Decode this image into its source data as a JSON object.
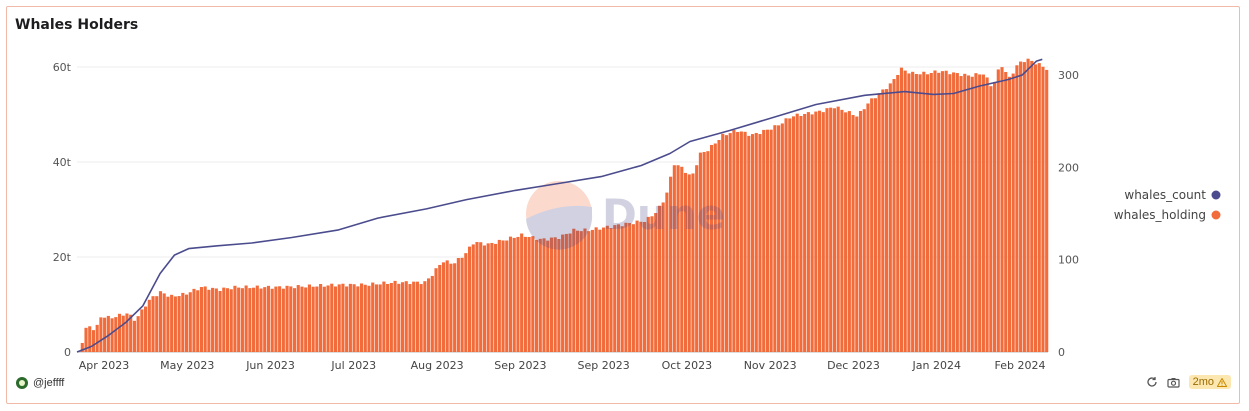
{
  "title": "Whales Holders",
  "watermark": "Dune",
  "author": "@jeffff",
  "age_badge": "2mo",
  "icons": {
    "author": "avatar-icon",
    "share": "refresh-icon",
    "snapshot": "camera-icon",
    "warning": "warning-icon"
  },
  "colors": {
    "bars": "#f26b3a",
    "line": "#4b4c8d",
    "grid": "#ececec",
    "axis_text": "#555555"
  },
  "chart_data": {
    "type": "bar+line",
    "title": "Whales Holders",
    "x_tick_labels": [
      "Apr 2023",
      "May 2023",
      "Jun 2023",
      "Jul 2023",
      "Aug 2023",
      "Sep 2023",
      "Sep 2023",
      "Oct 2023",
      "Nov 2023",
      "Dec 2023",
      "Jan 2024",
      "Feb 2024"
    ],
    "x_range": [
      "2023-04-01",
      "2024-03-05"
    ],
    "y_left": {
      "ticks": [
        "0",
        "20t",
        "40t",
        "60t"
      ],
      "range": [
        0,
        60
      ],
      "unit": "t"
    },
    "y_right": {
      "ticks": [
        "0",
        "100",
        "200",
        "300"
      ],
      "range": [
        0,
        300
      ]
    },
    "legend": {
      "position": "right",
      "items": [
        {
          "name": "whales_count",
          "color": "#4b4c8d"
        },
        {
          "name": "whales_holding",
          "color": "#f26b3a"
        }
      ]
    },
    "series": [
      {
        "name": "whales_holding",
        "type": "bar",
        "axis": "left",
        "points": [
          [
            "2023-04-01",
            0
          ],
          [
            "2023-04-04",
            6
          ],
          [
            "2023-04-07",
            5
          ],
          [
            "2023-04-09",
            8
          ],
          [
            "2023-04-12",
            7.5
          ],
          [
            "2023-04-15",
            8
          ],
          [
            "2023-04-18",
            8.5
          ],
          [
            "2023-04-21",
            7
          ],
          [
            "2023-04-24",
            10
          ],
          [
            "2023-04-27",
            12
          ],
          [
            "2023-04-30",
            13
          ],
          [
            "2023-05-03",
            12
          ],
          [
            "2023-05-08",
            12.5
          ],
          [
            "2023-05-14",
            14
          ],
          [
            "2023-05-20",
            13.5
          ],
          [
            "2023-05-26",
            14
          ],
          [
            "2023-06-01",
            14
          ],
          [
            "2023-06-10",
            14
          ],
          [
            "2023-06-20",
            14.2
          ],
          [
            "2023-07-01",
            14.5
          ],
          [
            "2023-07-10",
            14.5
          ],
          [
            "2023-07-20",
            15
          ],
          [
            "2023-07-31",
            15
          ],
          [
            "2023-08-03",
            17
          ],
          [
            "2023-08-06",
            19.5
          ],
          [
            "2023-08-10",
            19
          ],
          [
            "2023-08-14",
            21
          ],
          [
            "2023-08-17",
            23.5
          ],
          [
            "2023-08-22",
            23
          ],
          [
            "2023-08-28",
            24
          ],
          [
            "2023-09-03",
            25
          ],
          [
            "2023-09-06",
            24.5
          ],
          [
            "2023-09-10",
            24
          ],
          [
            "2023-09-16",
            24.5
          ],
          [
            "2023-09-21",
            26
          ],
          [
            "2023-09-26",
            26
          ],
          [
            "2023-10-01",
            26.5
          ],
          [
            "2023-10-06",
            27
          ],
          [
            "2023-10-11",
            27.5
          ],
          [
            "2023-10-16",
            28
          ],
          [
            "2023-10-20",
            30
          ],
          [
            "2023-10-23",
            33
          ],
          [
            "2023-10-26",
            40
          ],
          [
            "2023-10-29",
            39
          ],
          [
            "2023-11-01",
            37
          ],
          [
            "2023-11-04",
            42
          ],
          [
            "2023-11-07",
            43
          ],
          [
            "2023-11-12",
            46
          ],
          [
            "2023-11-17",
            47
          ],
          [
            "2023-11-22",
            46
          ],
          [
            "2023-11-27",
            47
          ],
          [
            "2023-12-01",
            48
          ],
          [
            "2023-12-06",
            50
          ],
          [
            "2023-12-11",
            50.5
          ],
          [
            "2023-12-16",
            51
          ],
          [
            "2023-12-21",
            52
          ],
          [
            "2023-12-25",
            51
          ],
          [
            "2023-12-29",
            50
          ],
          [
            "2024-01-02",
            53
          ],
          [
            "2024-01-06",
            55
          ],
          [
            "2024-01-10",
            57
          ],
          [
            "2024-01-13",
            60
          ],
          [
            "2024-01-17",
            59
          ],
          [
            "2024-01-22",
            59
          ],
          [
            "2024-01-27",
            59.5
          ],
          [
            "2024-02-01",
            59
          ],
          [
            "2024-02-06",
            58.5
          ],
          [
            "2024-02-11",
            59
          ],
          [
            "2024-02-14",
            56
          ],
          [
            "2024-02-17",
            61
          ],
          [
            "2024-02-20",
            58
          ],
          [
            "2024-02-23",
            61
          ],
          [
            "2024-02-26",
            62
          ],
          [
            "2024-03-01",
            61
          ],
          [
            "2024-03-04",
            60
          ]
        ]
      },
      {
        "name": "whales_count",
        "type": "line",
        "axis": "right",
        "points": [
          [
            "2023-04-01",
            0
          ],
          [
            "2023-04-06",
            6
          ],
          [
            "2023-04-12",
            18
          ],
          [
            "2023-04-18",
            32
          ],
          [
            "2023-04-24",
            50
          ],
          [
            "2023-04-30",
            85
          ],
          [
            "2023-05-05",
            105
          ],
          [
            "2023-05-10",
            112
          ],
          [
            "2023-05-20",
            115
          ],
          [
            "2023-06-01",
            118
          ],
          [
            "2023-06-15",
            124
          ],
          [
            "2023-07-01",
            132
          ],
          [
            "2023-07-15",
            145
          ],
          [
            "2023-08-01",
            155
          ],
          [
            "2023-08-15",
            165
          ],
          [
            "2023-09-01",
            175
          ],
          [
            "2023-09-15",
            182
          ],
          [
            "2023-10-01",
            190
          ],
          [
            "2023-10-15",
            202
          ],
          [
            "2023-10-25",
            215
          ],
          [
            "2023-11-01",
            228
          ],
          [
            "2023-11-15",
            240
          ],
          [
            "2023-12-01",
            255
          ],
          [
            "2023-12-15",
            268
          ],
          [
            "2024-01-01",
            278
          ],
          [
            "2024-01-15",
            282
          ],
          [
            "2024-01-25",
            279
          ],
          [
            "2024-02-01",
            280
          ],
          [
            "2024-02-10",
            288
          ],
          [
            "2024-02-20",
            295
          ],
          [
            "2024-02-25",
            300
          ],
          [
            "2024-03-01",
            315
          ],
          [
            "2024-03-03",
            317
          ]
        ]
      }
    ]
  }
}
